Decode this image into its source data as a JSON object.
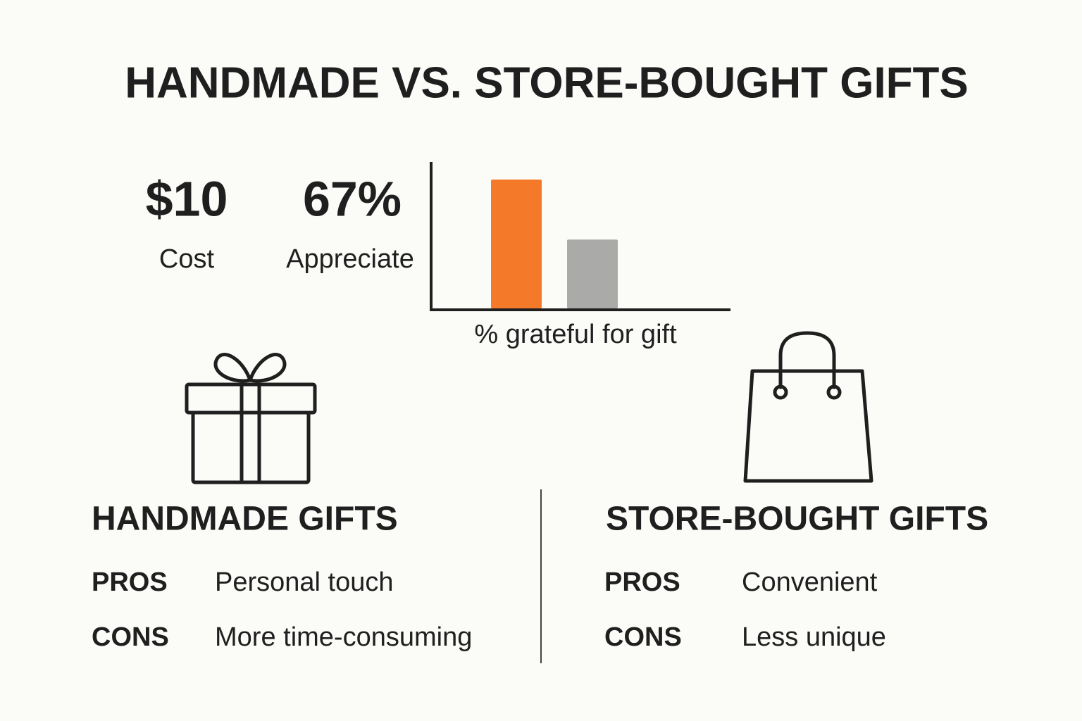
{
  "title": "HANDMADE VS. STORE-BOUGHT GIFTS",
  "stats": [
    {
      "value": "$10",
      "label": "Cost"
    },
    {
      "value": "67%",
      "label": "Appreciate"
    }
  ],
  "chart_data": {
    "type": "bar",
    "x_label": "% grateful for gift",
    "categories": [
      null,
      null
    ],
    "values": [
      88,
      47
    ],
    "colors": [
      "#f47a2a",
      "#aaaaa8"
    ],
    "ylim": [
      0,
      100
    ]
  },
  "sections": [
    {
      "heading": "HANDMADE GIFTS",
      "rows": [
        [
          "PROS",
          "Personal touch"
        ],
        [
          "CONS",
          "More time-consuming"
        ]
      ]
    },
    {
      "heading": "STORE-BOUGHT GIFTS",
      "rows": [
        [
          "PROS",
          "Convenient"
        ],
        [
          "CONS",
          "Less unique"
        ]
      ]
    }
  ]
}
